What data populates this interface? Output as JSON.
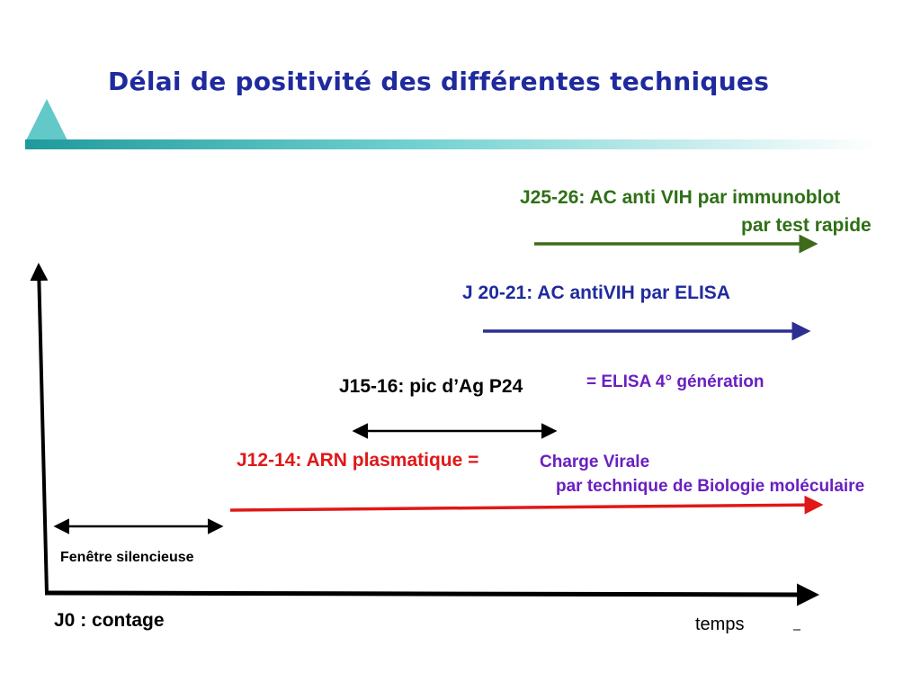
{
  "title": "Délai de positivité des différentes techniques",
  "labels": {
    "immunoblot_line1": "J25-26: AC anti VIH par immunoblot",
    "immunoblot_line2": "par test rapide",
    "elisa": "J 20-21: AC antiVIH par ELISA",
    "p24": "J15-16: pic d’Ag P24",
    "elisa4": "= ELISA 4° génération",
    "arn": "J12-14: ARN plasmatique",
    "arn_eq": "=",
    "cv_line1": "Charge Virale",
    "cv_line2": "par technique de Biologie moléculaire",
    "window": "Fenêtre silencieuse",
    "j0": "J0 : contage",
    "time": "temps"
  },
  "colors": {
    "title": "#1f2a9e",
    "green": "#3e6b1a",
    "green_text": "#2e7016",
    "blue": "#2c2f8f",
    "blue_text": "#1f2a9e",
    "purple": "#6a1fc0",
    "red": "#e01818",
    "black": "#000000",
    "accent": "#63c8c8"
  }
}
